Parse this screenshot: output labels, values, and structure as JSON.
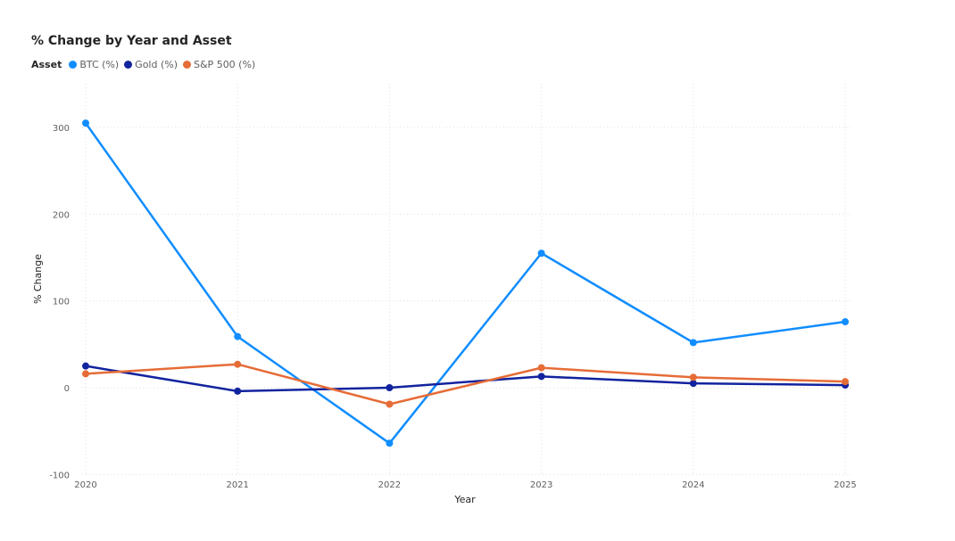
{
  "chart_data": {
    "type": "line",
    "title": "% Change by Year and Asset",
    "legend_title": "Asset",
    "legend_position": "top-left",
    "xlabel": "Year",
    "ylabel": "% Change",
    "categories": [
      "2020",
      "2021",
      "2022",
      "2023",
      "2024",
      "2025"
    ],
    "ylim": [
      -100,
      340
    ],
    "yticks": [
      -100,
      0,
      100,
      200,
      300
    ],
    "grid": true,
    "series": [
      {
        "name": "BTC (%)",
        "color": "#118DFF",
        "values": [
          305,
          59,
          -64,
          155,
          52,
          76
        ]
      },
      {
        "name": "Gold (%)",
        "color": "#12239E",
        "values": [
          25,
          -4,
          0,
          13,
          5,
          3
        ]
      },
      {
        "name": "S&P 500 (%)",
        "color": "#E66C37",
        "values": [
          16,
          27,
          -19,
          23,
          12,
          7
        ]
      }
    ]
  }
}
